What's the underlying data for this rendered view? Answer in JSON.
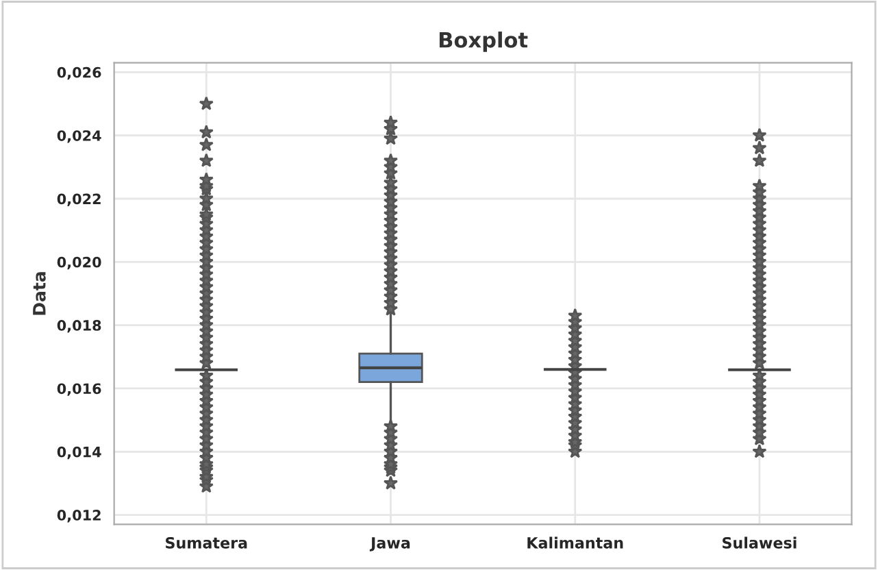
{
  "chart_data": {
    "type": "box",
    "title": "Boxplot",
    "ylabel": "Data",
    "categories": [
      "Sumatera",
      "Jawa",
      "Kalimantan",
      "Sulawesi"
    ],
    "boxes": [
      {
        "low": 0.01659,
        "q1": 0.01659,
        "median": 0.01659,
        "q3": 0.01659,
        "high": 0.01659,
        "outliers": [
          0.0129,
          0.0131,
          0.0132,
          0.0134,
          0.0135,
          0.0136,
          0.0138,
          0.014,
          0.0142,
          0.0144,
          0.0146,
          0.0148,
          0.015,
          0.0152,
          0.0154,
          0.0156,
          0.0158,
          0.016,
          0.0162,
          0.0164,
          0.0168,
          0.017,
          0.0172,
          0.0174,
          0.0176,
          0.0178,
          0.018,
          0.0182,
          0.0184,
          0.0186,
          0.0188,
          0.019,
          0.0192,
          0.0194,
          0.0196,
          0.0198,
          0.02,
          0.0202,
          0.0204,
          0.0206,
          0.0208,
          0.021,
          0.0212,
          0.0214,
          0.0215,
          0.0218,
          0.022,
          0.0223,
          0.0224,
          0.0226,
          0.0232,
          0.0237,
          0.0241,
          0.025
        ]
      },
      {
        "low": 0.0149,
        "q1": 0.0162,
        "median": 0.01665,
        "q3": 0.0171,
        "high": 0.0184,
        "outliers": [
          0.013,
          0.0134,
          0.0135,
          0.0136,
          0.0138,
          0.014,
          0.0142,
          0.0144,
          0.0146,
          0.0148,
          0.0185,
          0.0187,
          0.0189,
          0.0191,
          0.0193,
          0.0195,
          0.0197,
          0.0199,
          0.0201,
          0.0203,
          0.0205,
          0.0207,
          0.0209,
          0.0211,
          0.0213,
          0.0215,
          0.0217,
          0.0219,
          0.0221,
          0.0223,
          0.0225,
          0.0228,
          0.023,
          0.0232,
          0.0239,
          0.0242,
          0.0244
        ]
      },
      {
        "low": 0.0166,
        "q1": 0.0166,
        "median": 0.0166,
        "q3": 0.0166,
        "high": 0.0166,
        "outliers": [
          0.014,
          0.0142,
          0.0143,
          0.0145,
          0.0147,
          0.0149,
          0.0151,
          0.0153,
          0.0155,
          0.0157,
          0.0159,
          0.0161,
          0.0163,
          0.0165,
          0.0167,
          0.0169,
          0.0171,
          0.0173,
          0.0175,
          0.0177,
          0.0179,
          0.0181,
          0.0183
        ]
      },
      {
        "low": 0.01659,
        "q1": 0.01659,
        "median": 0.01659,
        "q3": 0.01659,
        "high": 0.01659,
        "outliers": [
          0.014,
          0.0144,
          0.0146,
          0.0148,
          0.015,
          0.0152,
          0.0154,
          0.0156,
          0.0158,
          0.016,
          0.0162,
          0.0164,
          0.0168,
          0.017,
          0.0172,
          0.0174,
          0.0176,
          0.0178,
          0.018,
          0.0182,
          0.0184,
          0.0186,
          0.0188,
          0.019,
          0.0192,
          0.0194,
          0.0196,
          0.0198,
          0.02,
          0.0202,
          0.0204,
          0.0206,
          0.0208,
          0.021,
          0.0212,
          0.0214,
          0.0216,
          0.0218,
          0.022,
          0.0222,
          0.0224,
          0.0232,
          0.0236,
          0.024
        ]
      }
    ],
    "color": "#7aa6dc",
    "marker": "star",
    "ylim": [
      0.0117,
      0.0263
    ],
    "yticks": [
      {
        "value": 0.012,
        "label": "0,012"
      },
      {
        "value": 0.014,
        "label": "0,014"
      },
      {
        "value": 0.016,
        "label": "0,016"
      },
      {
        "value": 0.018,
        "label": "0,018"
      },
      {
        "value": 0.02,
        "label": "0,020"
      },
      {
        "value": 0.022,
        "label": "0,022"
      },
      {
        "value": 0.024,
        "label": "0,024"
      },
      {
        "value": 0.026,
        "label": "0,026"
      }
    ],
    "grid": true
  }
}
